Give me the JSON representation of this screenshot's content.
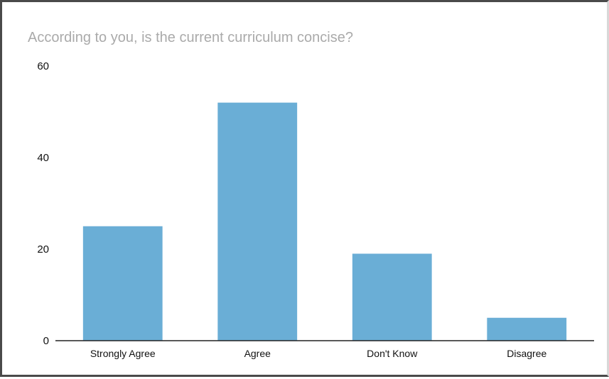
{
  "chart_data": {
    "type": "bar",
    "title": "According to you, is the current curriculum concise?",
    "categories": [
      "Strongly Agree",
      "Agree",
      "Don't Know",
      "Disagree"
    ],
    "values": [
      25,
      52,
      19,
      5
    ],
    "xlabel": "",
    "ylabel": "",
    "ylim": [
      0,
      60
    ],
    "yticks": [
      "0",
      "20",
      "40",
      "60"
    ],
    "grid": false,
    "legend": "none",
    "colors": {
      "bar": "#6aaed6",
      "title": "#aaaaaa",
      "axis": "#222222",
      "text": "#111111"
    }
  }
}
